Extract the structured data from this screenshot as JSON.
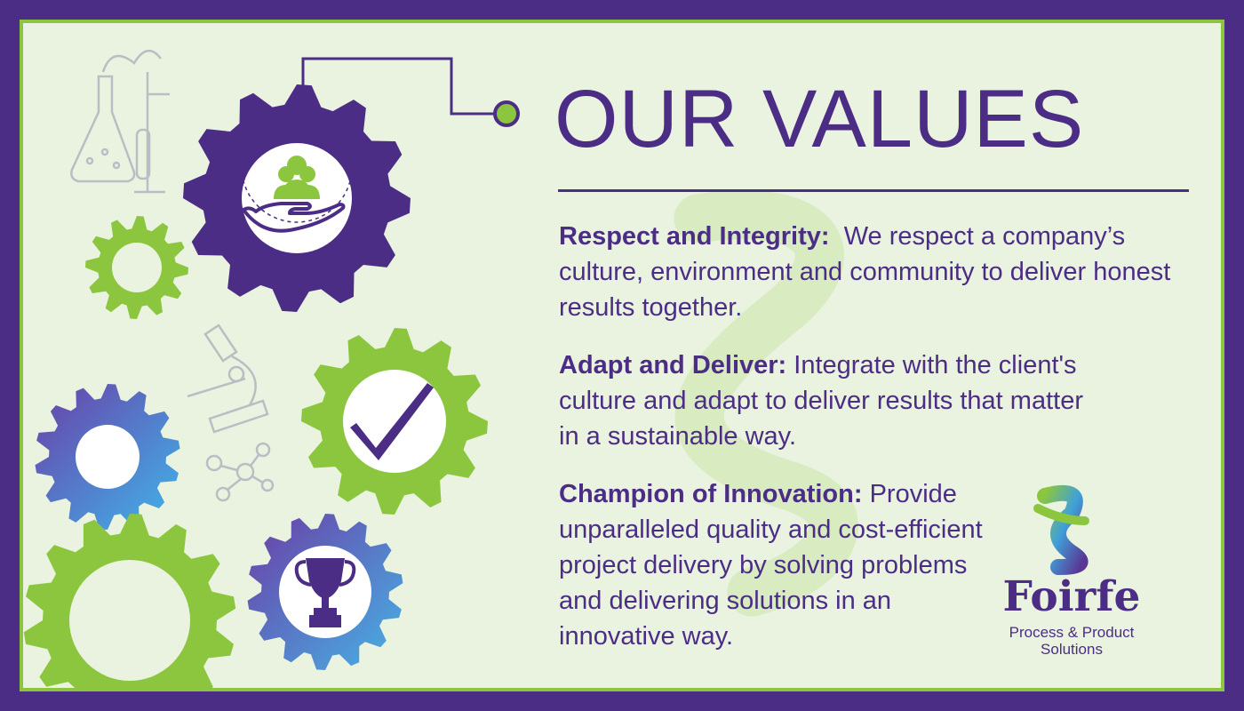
{
  "header": {
    "title": "OUR VALUES"
  },
  "values": [
    {
      "name": "Respect and Integrity:",
      "text": "We respect a company’s culture, environment and community to deliver honest results together."
    },
    {
      "name": "Adapt and Deliver:",
      "text": "Integrate with the client's culture and adapt to deliver results that matter in a sustainable way."
    },
    {
      "name": "Champion of Innovation:",
      "text": "Provide unparalleled quality and cost-efficient project delivery by solving problems and delivering solutions in an innovative way."
    }
  ],
  "logo": {
    "name": "Foirfe",
    "tagline_line1": "Process & Product",
    "tagline_line2": "Solutions"
  },
  "colors": {
    "purple": "#4b2d86",
    "green": "#8cc63f",
    "background": "#eaf3df",
    "blue": "#3f9be0"
  },
  "icons": [
    "flask-sketch-icon",
    "microscope-sketch-icon",
    "molecule-sketch-icon",
    "hand-people-icon",
    "checkmark-icon",
    "trophy-icon",
    "gear-icon"
  ]
}
